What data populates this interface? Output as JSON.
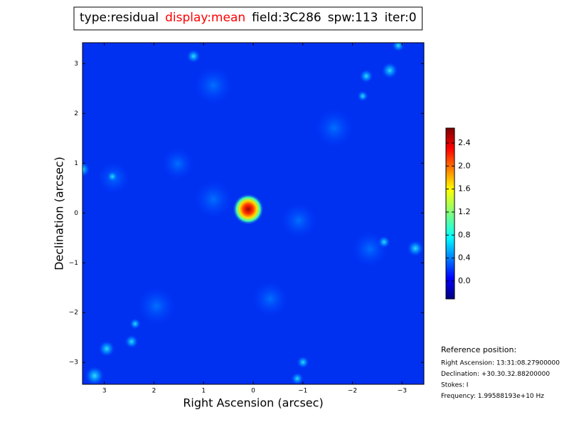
{
  "chart_data": {
    "type": "image",
    "title_parts": [
      {
        "text": "type:residual",
        "color": "#000000"
      },
      {
        "text": "display:mean",
        "color": "#ff0000"
      },
      {
        "text": "field:3C286",
        "color": "#000000"
      },
      {
        "text": "spw:113",
        "color": "#000000"
      },
      {
        "text": "iter:0",
        "color": "#000000"
      }
    ],
    "xlabel": "Right Ascension (arcsec)",
    "ylabel": "Declination (arcsec)",
    "xlim": [
      3.44,
      -3.44
    ],
    "ylim": [
      -3.44,
      3.42
    ],
    "xticks": [
      3,
      2,
      1,
      0,
      {
        "value": -1,
        "label": "−1"
      },
      {
        "value": -2,
        "label": "−2"
      },
      {
        "value": -3,
        "label": "−3"
      }
    ],
    "yticks": [
      {
        "value": -3,
        "label": "−3"
      },
      {
        "value": -2,
        "label": "−2"
      },
      {
        "value": -1,
        "label": "−1"
      },
      0,
      1,
      2,
      3
    ],
    "colorbar": {
      "lim": [
        -0.31,
        2.66
      ],
      "ticks": [
        {
          "value": 0,
          "label": "0.0"
        },
        0.4,
        0.8,
        1.2,
        1.6,
        {
          "value": 2,
          "label": "2.0"
        },
        2.4
      ]
    },
    "reference": {
      "heading": "Reference position:",
      "lines": [
        "Right Ascension: 13:31:08.27900000",
        "Declination: +30.30.32.88200000",
        "Stokes: I",
        "Frequency: 1.99588193e+10 Hz"
      ]
    }
  }
}
